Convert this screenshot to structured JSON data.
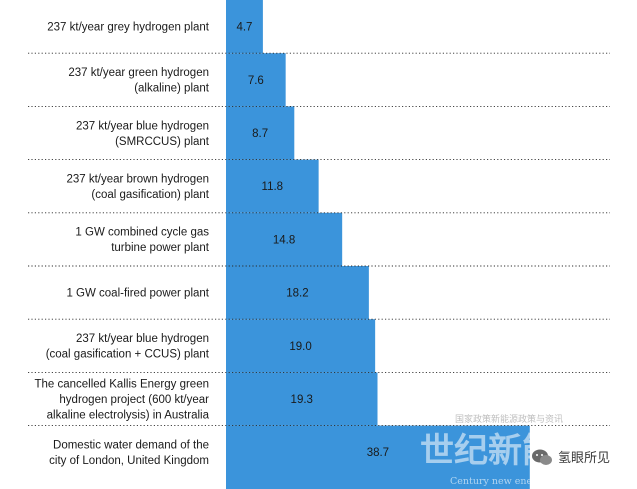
{
  "chart_data": {
    "type": "bar",
    "orientation": "horizontal",
    "title": "",
    "xlabel": "",
    "ylabel": "",
    "xlim": [
      0,
      42
    ],
    "grid": false,
    "bar_color": "#3b94db",
    "categories": [
      [
        "237 kt/year grey hydrogen plant"
      ],
      [
        "237 kt/year green hydrogen",
        "(alkaline) plant"
      ],
      [
        "237 kt/year blue hydrogen",
        "(SMRCCUS) plant"
      ],
      [
        "237 kt/year brown hydrogen",
        "(coal gasification) plant"
      ],
      [
        "1 GW combined cycle gas",
        "turbine power plant"
      ],
      [
        "1 GW coal-fired power plant"
      ],
      [
        "237 kt/year blue hydrogen",
        "(coal gasification + CCUS) plant"
      ],
      [
        "The cancelled Kallis Energy green",
        "hydrogen project (600 kt/year",
        "alkaline electrolysis) in Australia"
      ],
      [
        "Domestic water demand of the",
        "city of London, United Kingdom"
      ]
    ],
    "values": [
      4.7,
      7.6,
      8.7,
      11.8,
      14.8,
      18.2,
      19.0,
      19.3,
      38.7
    ],
    "value_labels": [
      "4.7",
      "7.6",
      "8.7",
      "11.8",
      "14.8",
      "18.2",
      "19.0",
      "19.3",
      "38.7"
    ]
  },
  "watermark": {
    "main": "世纪新能源网",
    "sub": "Century new energy network",
    "top": "国家政策新能源政策与资讯",
    "account": "氢眼所见",
    "account_icon": "wechat-icon"
  }
}
